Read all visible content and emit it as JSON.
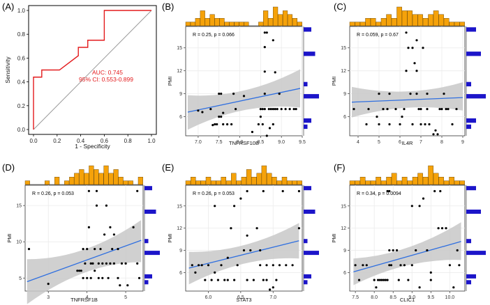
{
  "colors": {
    "roc": "#e31a1c",
    "diagonal": "#9a9a9a",
    "hist_top": "#f5a20a",
    "hist_side": "#1c15c9",
    "fit_line": "#2f6fe0",
    "ci_band": "#c8c8c8",
    "point": "#000000"
  },
  "chart_data": [
    {
      "panel": "(A)",
      "type": "line",
      "xlabel": "1 - Specificity",
      "ylabel": "Sensitivity",
      "xlim": [
        0,
        1
      ],
      "ylim": [
        0,
        1
      ],
      "x_ticks": [
        "0.0",
        "0.2",
        "0.4",
        "0.6",
        "0.8",
        "1.0"
      ],
      "y_ticks": [
        "0.0",
        "0.2",
        "0.4",
        "0.6",
        "0.8",
        "1.0"
      ],
      "auc_text": "AUC: 0.745",
      "ci_text": "95% CI: 0.553-0.899",
      "roc_points": [
        [
          0,
          0
        ],
        [
          0,
          0.44
        ],
        [
          0.07,
          0.44
        ],
        [
          0.07,
          0.5
        ],
        [
          0.22,
          0.5
        ],
        [
          0.38,
          0.62
        ],
        [
          0.38,
          0.69
        ],
        [
          0.46,
          0.69
        ],
        [
          0.46,
          0.75
        ],
        [
          0.6,
          0.75
        ],
        [
          0.6,
          1.0
        ],
        [
          1.0,
          1.0
        ]
      ]
    },
    {
      "panel": "(B)",
      "type": "scatter",
      "xlabel": "TNFRSF10B",
      "ylabel": "PMI",
      "stats_text": "R = 0.25, p = 0.066",
      "xlim": [
        6.7,
        9.5
      ],
      "ylim": [
        3.5,
        17.8
      ],
      "x_ticks": [
        7.0,
        7.5,
        8.0,
        8.5,
        9.0,
        9.5
      ],
      "y_ticks": [
        6,
        9,
        12,
        15
      ],
      "fit": [
        [
          6.75,
          6.6
        ],
        [
          9.45,
          9.7
        ]
      ],
      "ci_low": [
        4.3,
        7.2
      ],
      "ci_high": [
        8.8,
        12.2
      ],
      "points": [
        [
          7.0,
          6.8
        ],
        [
          7.1,
          6.6
        ],
        [
          7.3,
          7.0
        ],
        [
          7.35,
          4.9
        ],
        [
          7.4,
          5.0
        ],
        [
          7.45,
          5.0
        ],
        [
          7.5,
          6.0
        ],
        [
          7.55,
          6.0
        ],
        [
          7.6,
          5.0
        ],
        [
          7.7,
          5.0
        ],
        [
          7.8,
          5.0
        ],
        [
          7.5,
          9.0
        ],
        [
          7.55,
          9.0
        ],
        [
          7.85,
          9.0
        ],
        [
          8.1,
          8.7
        ],
        [
          7.6,
          6.5
        ],
        [
          7.9,
          7.0
        ],
        [
          8.3,
          4.0
        ],
        [
          8.5,
          6.0
        ],
        [
          8.55,
          5.0
        ],
        [
          8.6,
          7.0
        ],
        [
          8.6,
          9.0
        ],
        [
          8.6,
          11.9
        ],
        [
          8.6,
          15.1
        ],
        [
          8.6,
          17.0
        ],
        [
          8.65,
          3.5
        ],
        [
          8.65,
          17.0
        ],
        [
          8.7,
          7.0
        ],
        [
          8.72,
          4.5
        ],
        [
          8.75,
          7.0
        ],
        [
          8.8,
          7.0
        ],
        [
          8.8,
          5.0
        ],
        [
          8.8,
          16.0
        ],
        [
          8.85,
          11.8
        ],
        [
          8.85,
          7.0
        ],
        [
          8.9,
          7.0
        ],
        [
          8.95,
          9.0
        ],
        [
          9.0,
          7.0
        ],
        [
          9.1,
          7.0
        ],
        [
          9.2,
          7.0
        ],
        [
          9.3,
          7.0
        ],
        [
          9.35,
          7.0
        ],
        [
          8.55,
          7.0
        ],
        [
          8.5,
          7.0
        ],
        [
          8.45,
          5.0
        ]
      ],
      "hist_x": [
        1,
        1,
        2,
        4,
        2,
        3,
        2,
        2,
        1,
        1,
        1,
        1,
        1,
        0,
        0,
        1,
        4,
        2,
        5,
        3,
        4,
        3,
        2,
        1
      ],
      "hist_y": [
        0,
        1,
        2,
        0,
        0,
        0,
        4,
        0,
        1,
        0,
        0,
        0,
        0,
        3,
        0,
        0,
        0,
        2
      ]
    },
    {
      "panel": "(C)",
      "type": "scatter",
      "xlabel": "IL4R",
      "ylabel": "PMI",
      "stats_text": "R = 0.059, p = 0.67",
      "xlim": [
        3.6,
        9.1
      ],
      "ylim": [
        3.5,
        17.8
      ],
      "x_ticks": [
        4,
        5,
        6,
        7,
        8,
        9
      ],
      "y_ticks": [
        6,
        9,
        12,
        15
      ],
      "fit": [
        [
          3.7,
          7.9
        ],
        [
          9.0,
          8.5
        ]
      ],
      "ci_low": [
        5.9,
        6.8
      ],
      "ci_high": [
        9.9,
        10.5
      ],
      "points": [
        [
          3.8,
          7.0
        ],
        [
          4.4,
          5.0
        ],
        [
          4.5,
          7.0
        ],
        [
          4.9,
          6.0
        ],
        [
          5.0,
          9.0
        ],
        [
          5.0,
          5.0
        ],
        [
          5.2,
          7.0
        ],
        [
          5.4,
          7.0
        ],
        [
          5.5,
          9.0
        ],
        [
          5.5,
          5.0
        ],
        [
          5.8,
          7.0
        ],
        [
          6.0,
          5.0
        ],
        [
          6.1,
          6.0
        ],
        [
          6.2,
          7.0
        ],
        [
          6.3,
          17.0
        ],
        [
          6.3,
          12.0
        ],
        [
          6.4,
          15.0
        ],
        [
          6.5,
          9.0
        ],
        [
          6.6,
          15.0
        ],
        [
          6.6,
          5.0
        ],
        [
          6.7,
          13.0
        ],
        [
          6.8,
          9.0
        ],
        [
          6.8,
          12.0
        ],
        [
          6.9,
          7.0
        ],
        [
          7.0,
          7.0
        ],
        [
          7.0,
          5.0
        ],
        [
          7.1,
          15.0
        ],
        [
          7.2,
          5.0
        ],
        [
          7.3,
          9.0
        ],
        [
          7.3,
          7.0
        ],
        [
          7.4,
          5.0
        ],
        [
          7.6,
          3.7
        ],
        [
          7.7,
          4.2
        ],
        [
          7.8,
          3.7
        ],
        [
          7.9,
          7.0
        ],
        [
          8.0,
          7.0
        ],
        [
          8.1,
          9.0
        ],
        [
          8.2,
          7.0
        ],
        [
          8.3,
          7.0
        ],
        [
          8.5,
          5.0
        ],
        [
          8.7,
          7.0
        ],
        [
          6.8,
          16.0
        ]
      ],
      "hist_x": [
        1,
        1,
        1,
        2,
        2,
        1,
        2,
        3,
        2,
        5,
        4,
        4,
        3,
        3,
        2,
        3,
        4,
        3,
        2,
        1,
        1,
        1
      ],
      "hist_y": [
        0,
        1,
        2,
        0,
        0,
        0,
        4,
        0,
        1,
        0,
        0,
        0,
        0,
        3,
        0,
        0,
        0,
        2
      ]
    },
    {
      "panel": "(D)",
      "type": "scatter",
      "xlabel": "TNFRSF1B",
      "ylabel": "PMI",
      "stats_text": "R = 0.26, p = 0.053",
      "xlim": [
        2.4,
        5.45
      ],
      "ylim": [
        3.2,
        17.8
      ],
      "x_ticks": [
        3,
        4,
        5
      ],
      "y_ticks": [
        5,
        10,
        15
      ],
      "fit": [
        [
          2.45,
          4.5
        ],
        [
          5.4,
          10.2
        ]
      ],
      "ci_low": [
        1.4,
        7.2
      ],
      "ci_high": [
        7.6,
        13.0
      ],
      "points": [
        [
          2.5,
          9.0
        ],
        [
          3.0,
          4.2
        ],
        [
          3.75,
          6.0
        ],
        [
          3.8,
          6.0
        ],
        [
          3.85,
          6.0
        ],
        [
          3.9,
          5.0
        ],
        [
          3.9,
          9.0
        ],
        [
          3.95,
          7.0
        ],
        [
          4.0,
          5.0
        ],
        [
          4.0,
          9.0
        ],
        [
          4.05,
          12.0
        ],
        [
          4.05,
          17.0
        ],
        [
          4.1,
          7.0
        ],
        [
          4.1,
          5.0
        ],
        [
          4.15,
          7.0
        ],
        [
          4.2,
          6.0
        ],
        [
          4.2,
          9.0
        ],
        [
          4.25,
          15.0
        ],
        [
          4.25,
          17.0
        ],
        [
          4.3,
          7.0
        ],
        [
          4.3,
          5.0
        ],
        [
          4.35,
          9.0
        ],
        [
          4.4,
          7.0
        ],
        [
          4.4,
          5.0
        ],
        [
          4.45,
          11.0
        ],
        [
          4.5,
          7.0
        ],
        [
          4.5,
          15.0
        ],
        [
          4.55,
          5.0
        ],
        [
          4.6,
          7.0
        ],
        [
          4.6,
          12.0
        ],
        [
          4.65,
          9.0
        ],
        [
          4.7,
          7.0
        ],
        [
          4.7,
          11.0
        ],
        [
          4.8,
          5.0
        ],
        [
          4.8,
          9.0
        ],
        [
          4.85,
          4.0
        ],
        [
          4.9,
          7.0
        ],
        [
          5.0,
          7.0
        ],
        [
          5.05,
          4.0
        ],
        [
          5.2,
          12.0
        ],
        [
          5.3,
          17.0
        ],
        [
          5.3,
          7.0
        ],
        [
          5.35,
          5.0
        ]
      ],
      "hist_x": [
        1,
        0,
        0,
        0,
        1,
        0,
        2,
        0,
        1,
        2,
        3,
        4,
        3,
        5,
        4,
        3,
        5,
        3,
        4,
        2,
        1,
        1,
        0,
        2
      ],
      "hist_y": [
        0,
        1,
        2,
        0,
        0,
        0,
        4,
        0,
        1,
        0,
        0,
        0,
        0,
        3,
        0,
        0,
        0,
        2
      ]
    },
    {
      "panel": "(E)",
      "type": "scatter",
      "xlabel": "STAT3",
      "ylabel": "PMI",
      "stats_text": "R = 0.26, p = 0.053",
      "xlim": [
        5.65,
        7.45
      ],
      "ylim": [
        3.5,
        17.8
      ],
      "x_ticks": [
        6.0,
        6.5,
        7.0
      ],
      "y_ticks": [
        6,
        9,
        12,
        15
      ],
      "fit": [
        [
          5.7,
          6.6
        ],
        [
          7.4,
          10.3
        ]
      ],
      "ci_low": [
        4.4,
        7.9
      ],
      "ci_high": [
        8.8,
        12.7
      ],
      "points": [
        [
          5.75,
          7.0
        ],
        [
          5.8,
          6.0
        ],
        [
          5.85,
          7.0
        ],
        [
          5.9,
          7.0
        ],
        [
          5.95,
          5.0
        ],
        [
          6.0,
          7.0
        ],
        [
          6.05,
          5.0
        ],
        [
          6.1,
          6.0
        ],
        [
          6.15,
          5.0
        ],
        [
          6.2,
          7.0
        ],
        [
          6.25,
          5.0
        ],
        [
          6.3,
          8.0
        ],
        [
          6.3,
          5.0
        ],
        [
          6.35,
          12.0
        ],
        [
          6.4,
          5.0
        ],
        [
          6.45,
          7.0
        ],
        [
          6.5,
          16.0
        ],
        [
          6.55,
          9.0
        ],
        [
          6.6,
          11.0
        ],
        [
          6.6,
          5.0
        ],
        [
          6.65,
          9.0
        ],
        [
          6.7,
          5.0
        ],
        [
          6.75,
          12.0
        ],
        [
          6.8,
          7.0
        ],
        [
          6.8,
          9.0
        ],
        [
          6.85,
          5.0
        ],
        [
          6.85,
          17.0
        ],
        [
          6.9,
          5.0
        ],
        [
          6.9,
          7.0
        ],
        [
          6.95,
          3.7
        ],
        [
          7.0,
          7.0
        ],
        [
          7.0,
          4.0
        ],
        [
          7.05,
          5.0
        ],
        [
          7.1,
          7.0
        ],
        [
          7.15,
          17.0
        ],
        [
          7.2,
          7.0
        ],
        [
          7.3,
          7.0
        ],
        [
          7.4,
          12.0
        ],
        [
          7.4,
          17.0
        ],
        [
          6.6,
          17.0
        ],
        [
          6.4,
          15.0
        ],
        [
          6.1,
          15.0
        ]
      ],
      "hist_x": [
        1,
        2,
        1,
        1,
        2,
        1,
        1,
        2,
        1,
        3,
        1,
        2,
        4,
        2,
        3,
        5,
        3,
        2,
        1,
        2,
        1,
        1,
        1
      ],
      "hist_y": [
        0,
        1,
        2,
        0,
        0,
        0,
        4,
        0,
        1,
        0,
        0,
        0,
        0,
        3,
        0,
        0,
        0,
        2
      ]
    },
    {
      "panel": "(F)",
      "type": "scatter",
      "xlabel": "CLIC1",
      "ylabel": "PMI",
      "stats_text": "R = 0.34, p = 0.0094",
      "xlim": [
        7.35,
        10.4
      ],
      "ylim": [
        3.5,
        17.8
      ],
      "x_ticks": [
        7.5,
        8.0,
        8.5,
        9.0,
        9.5,
        10.0
      ],
      "y_ticks": [
        6,
        9,
        12,
        15
      ],
      "fit": [
        [
          7.45,
          6.1
        ],
        [
          10.3,
          10.2
        ]
      ],
      "ci_low": [
        4.3,
        7.7
      ],
      "ci_high": [
        7.9,
        12.8
      ],
      "points": [
        [
          7.5,
          7.0
        ],
        [
          7.6,
          5.0
        ],
        [
          7.7,
          7.0
        ],
        [
          7.8,
          7.0
        ],
        [
          8.0,
          5.0
        ],
        [
          8.05,
          4.0
        ],
        [
          8.1,
          5.0
        ],
        [
          8.15,
          5.0
        ],
        [
          8.2,
          5.0
        ],
        [
          8.25,
          5.0
        ],
        [
          8.3,
          5.0
        ],
        [
          8.35,
          5.0
        ],
        [
          8.4,
          9.0
        ],
        [
          8.4,
          7.0
        ],
        [
          8.45,
          7.0
        ],
        [
          8.5,
          9.0
        ],
        [
          8.6,
          9.0
        ],
        [
          8.65,
          5.0
        ],
        [
          8.7,
          7.0
        ],
        [
          8.8,
          7.0
        ],
        [
          8.9,
          5.0
        ],
        [
          9.0,
          7.0
        ],
        [
          9.0,
          15.0
        ],
        [
          9.1,
          9.0
        ],
        [
          9.2,
          4.0
        ],
        [
          9.2,
          15.0
        ],
        [
          9.3,
          16.0
        ],
        [
          9.4,
          9.0
        ],
        [
          9.5,
          6.0
        ],
        [
          9.5,
          5.0
        ],
        [
          9.6,
          17.0
        ],
        [
          9.7,
          12.0
        ],
        [
          9.8,
          12.0
        ],
        [
          9.9,
          12.0
        ],
        [
          10.0,
          7.0
        ],
        [
          10.1,
          4.0
        ],
        [
          10.2,
          9.0
        ],
        [
          10.25,
          7.0
        ],
        [
          8.35,
          17.0
        ],
        [
          8.4,
          17.0
        ],
        [
          9.75,
          17.0
        ]
      ],
      "hist_x": [
        1,
        1,
        2,
        1,
        1,
        2,
        1,
        2,
        3,
        1,
        2,
        1,
        2,
        3,
        2,
        5,
        3,
        2,
        1,
        2,
        1,
        1
      ],
      "hist_y": [
        0,
        1,
        2,
        0,
        0,
        0,
        4,
        0,
        1,
        0,
        0,
        0,
        0,
        3,
        0,
        0,
        0,
        2
      ]
    }
  ]
}
